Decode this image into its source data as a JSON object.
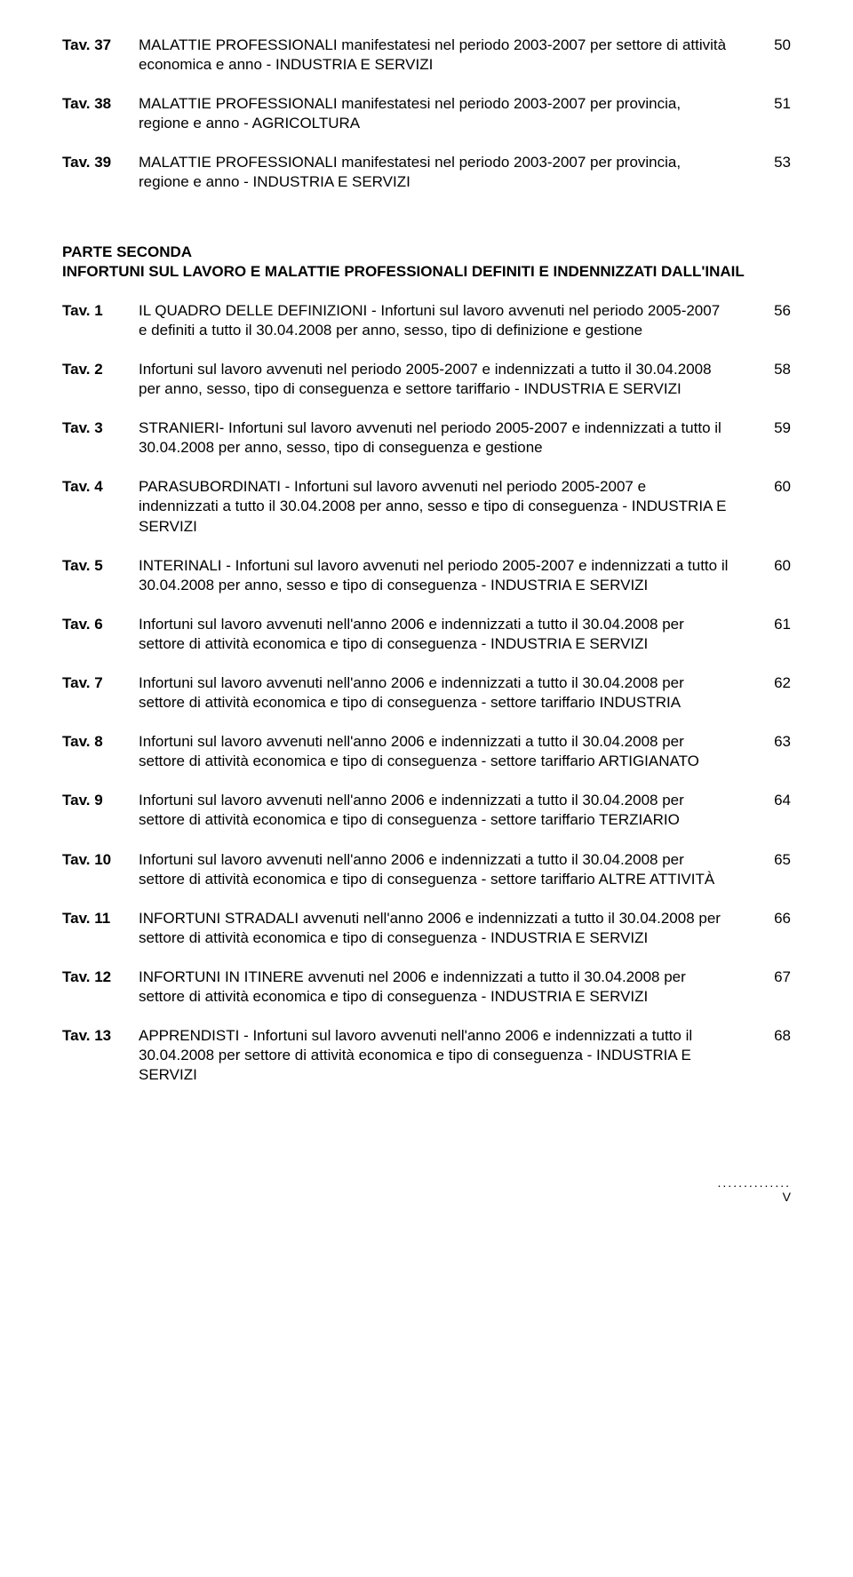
{
  "part1": [
    {
      "id": "Tav. 37",
      "text": "MALATTIE PROFESSIONALI manifestatesi nel periodo 2003-2007 per settore di attività economica e anno - INDUSTRIA E SERVIZI",
      "page": "50"
    },
    {
      "id": "Tav. 38",
      "text": "MALATTIE PROFESSIONALI manifestatesi nel periodo 2003-2007 per provincia, regione e anno - AGRICOLTURA",
      "page": "51"
    },
    {
      "id": "Tav. 39",
      "text": "MALATTIE PROFESSIONALI manifestatesi nel periodo 2003-2007 per provincia, regione e anno - INDUSTRIA E SERVIZI",
      "page": "53"
    }
  ],
  "section_heading": {
    "line1": "PARTE SECONDA",
    "line2": "INFORTUNI SUL LAVORO E MALATTIE PROFESSIONALI DEFINITI E INDENNIZZATI DALL'INAIL"
  },
  "part2": [
    {
      "id": "Tav. 1",
      "text": "IL QUADRO DELLE DEFINIZIONI - Infortuni sul lavoro avvenuti nel periodo 2005-2007 e definiti a tutto il 30.04.2008 per anno, sesso, tipo di definizione e gestione",
      "page": "56"
    },
    {
      "id": "Tav. 2",
      "text": "Infortuni sul lavoro avvenuti nel periodo 2005-2007 e indennizzati a tutto il 30.04.2008 per anno, sesso, tipo di conseguenza e settore tariffario - INDUSTRIA E SERVIZI",
      "page": "58"
    },
    {
      "id": "Tav. 3",
      "text": "STRANIERI- Infortuni sul lavoro avvenuti nel periodo 2005-2007 e indennizzati a tutto il 30.04.2008 per anno, sesso, tipo di conseguenza e gestione",
      "page": "59"
    },
    {
      "id": "Tav. 4",
      "text": "PARASUBORDINATI - Infortuni sul lavoro avvenuti nel periodo 2005-2007 e indennizzati a tutto il 30.04.2008 per anno, sesso e tipo di conseguenza - INDUSTRIA E SERVIZI",
      "page": "60"
    },
    {
      "id": "Tav. 5",
      "text": "INTERINALI - Infortuni sul lavoro avvenuti nel periodo 2005-2007 e indennizzati a tutto il 30.04.2008 per anno, sesso e tipo di conseguenza - INDUSTRIA E SERVIZI",
      "page": "60"
    },
    {
      "id": "Tav. 6",
      "text": "Infortuni sul lavoro avvenuti nell'anno 2006 e indennizzati a tutto il 30.04.2008 per settore di attività economica e tipo di conseguenza - INDUSTRIA E SERVIZI",
      "page": "61"
    },
    {
      "id": "Tav. 7",
      "text": "Infortuni sul lavoro avvenuti nell'anno 2006 e indennizzati a tutto il 30.04.2008 per settore di attività economica e tipo di conseguenza - settore tariffario INDUSTRIA",
      "page": "62"
    },
    {
      "id": "Tav. 8",
      "text": "Infortuni sul lavoro avvenuti nell'anno 2006 e indennizzati a tutto il 30.04.2008 per settore di attività economica e tipo di conseguenza - settore tariffario ARTIGIANATO",
      "page": "63"
    },
    {
      "id": "Tav. 9",
      "text": "Infortuni sul lavoro avvenuti nell'anno 2006 e indennizzati a tutto il 30.04.2008 per settore di attività economica e tipo di conseguenza - settore tariffario TERZIARIO",
      "page": "64"
    },
    {
      "id": "Tav. 10",
      "text": "Infortuni sul lavoro avvenuti nell'anno 2006 e indennizzati a tutto il 30.04.2008 per settore di attività economica e tipo di conseguenza - settore tariffario ALTRE ATTIVITÀ",
      "page": "65"
    },
    {
      "id": "Tav. 11",
      "text": "INFORTUNI STRADALI avvenuti nell'anno 2006 e indennizzati a tutto il 30.04.2008 per settore di attività economica e tipo di conseguenza - INDUSTRIA E SERVIZI",
      "page": "66"
    },
    {
      "id": "Tav. 12",
      "text": "INFORTUNI IN ITINERE avvenuti nel 2006 e indennizzati a tutto il 30.04.2008 per settore di attività economica e tipo di conseguenza - INDUSTRIA E SERVIZI",
      "page": "67"
    },
    {
      "id": "Tav. 13",
      "text": "APPRENDISTI - Infortuni sul lavoro avvenuti nell'anno 2006 e indennizzati a tutto il 30.04.2008 per settore di attività economica e tipo di conseguenza - INDUSTRIA E SERVIZI",
      "page": "68"
    }
  ],
  "footer": {
    "dots": "..............",
    "page_num": "V"
  }
}
